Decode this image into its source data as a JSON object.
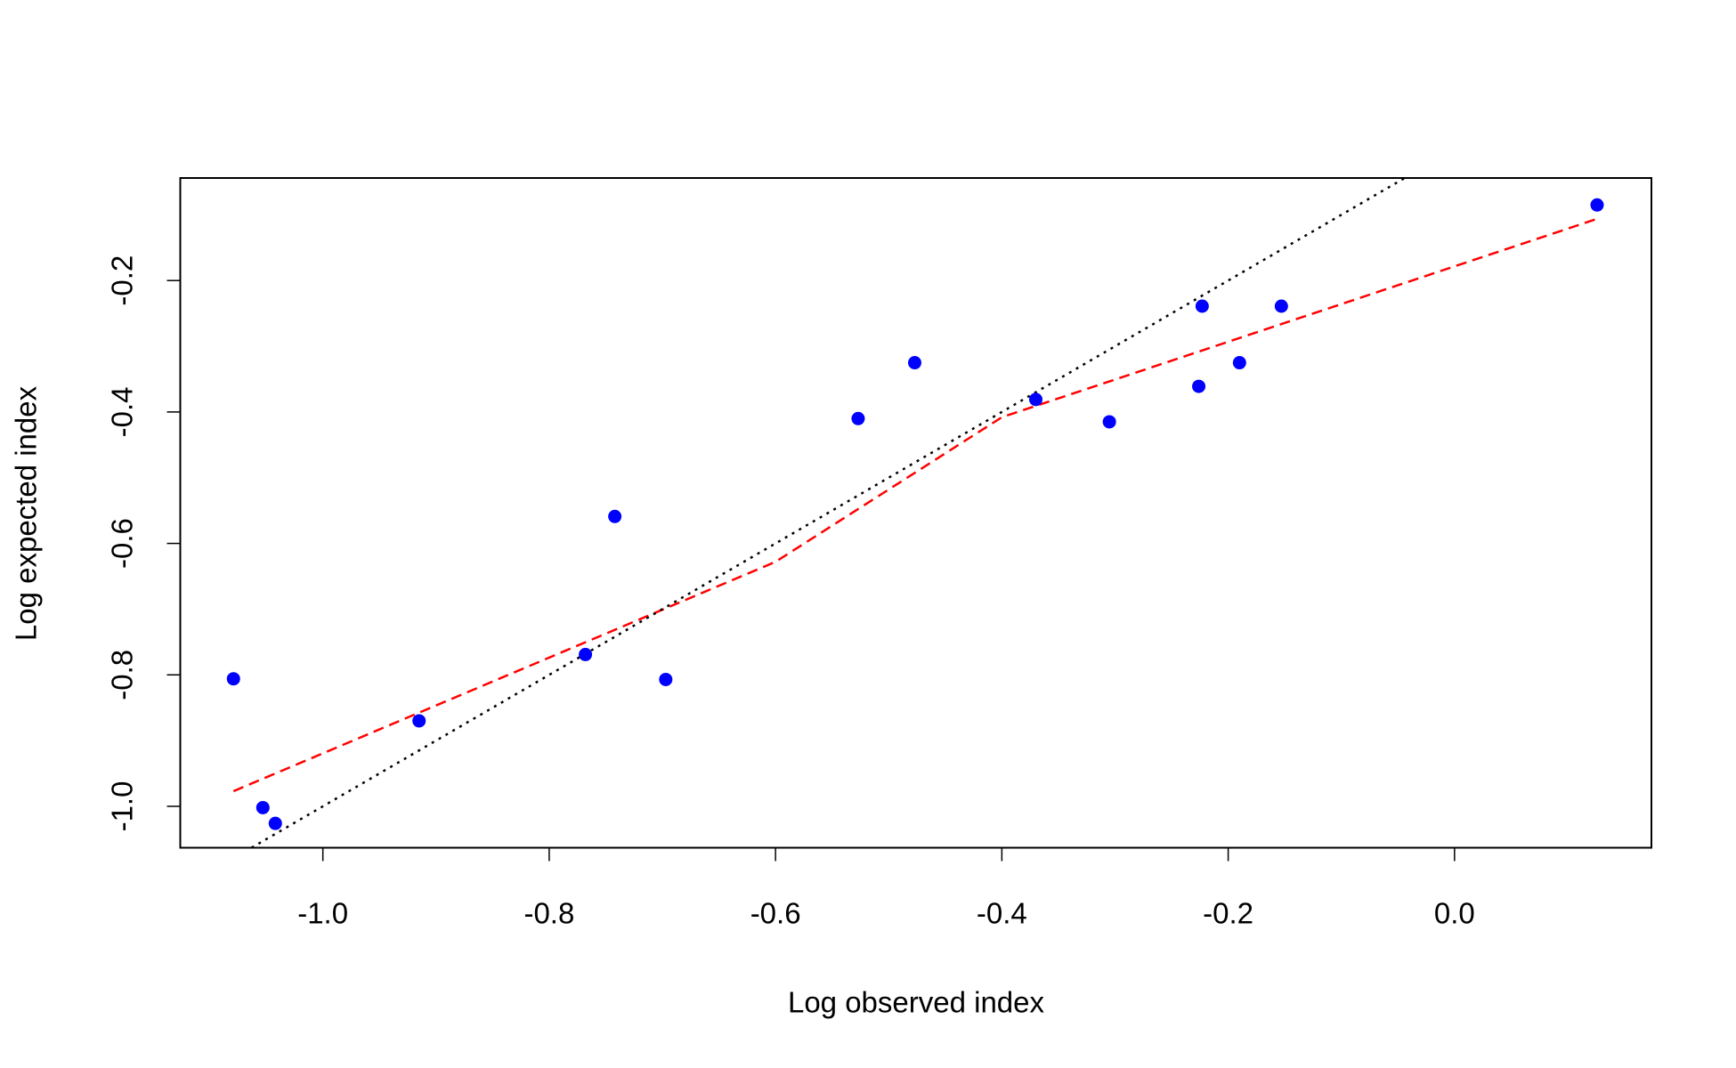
{
  "chart_data": {
    "type": "scatter",
    "xlabel": "Log observed index",
    "ylabel": "Log expected index",
    "xlim": [
      -1.126,
      0.174
    ],
    "ylim": [
      -1.063,
      -0.044
    ],
    "xticks": [
      {
        "value": -1.0,
        "label": "-1.0"
      },
      -0.8,
      -0.6,
      -0.4,
      -0.2,
      {
        "value": 0.0,
        "label": "0.0"
      }
    ],
    "yticks": [
      {
        "value": -1.0,
        "label": "-1.0"
      },
      -0.8,
      -0.6,
      -0.4,
      -0.2
    ],
    "series": [
      {
        "type": "scatter",
        "color": "#0000ff",
        "x": [
          -1.079,
          -1.053,
          -1.042,
          -0.915,
          -0.768,
          -0.742,
          -0.697,
          -0.527,
          -0.477,
          -0.37,
          -0.305,
          -0.226,
          -0.223,
          -0.19,
          -0.153,
          0.126
        ],
        "values": [
          -0.806,
          -1.002,
          -1.026,
          -0.87,
          -0.769,
          -0.559,
          -0.807,
          -0.41,
          -0.325,
          -0.381,
          -0.415,
          -0.361,
          -0.239,
          -0.325,
          -0.239,
          -0.085
        ]
      },
      {
        "type": "line",
        "color": "#ff0000",
        "dash": "dashed",
        "x": [
          -1.079,
          -0.6,
          -0.4,
          0.128
        ],
        "values": [
          -0.977,
          -0.628,
          -0.408,
          -0.105
        ]
      },
      {
        "type": "line",
        "color": "#000000",
        "dash": "dotted",
        "x": [
          -1.063,
          -0.044
        ],
        "values": [
          -1.063,
          -0.044
        ]
      }
    ]
  }
}
